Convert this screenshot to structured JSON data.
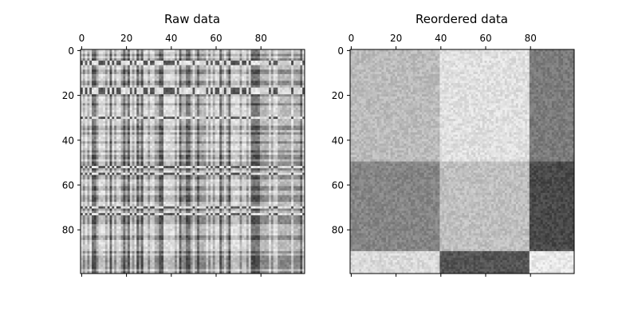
{
  "chart_data": [
    {
      "type": "heatmap",
      "title": "Raw data",
      "rows": 100,
      "cols": 100,
      "xticks": [
        0,
        20,
        40,
        60,
        80
      ],
      "yticks": [
        0,
        20,
        40,
        60,
        80
      ],
      "xaxis_position": "top",
      "colormap": "greys",
      "grid": false,
      "description_of_values": "bicluster matrix with rows and columns shuffled"
    },
    {
      "type": "heatmap",
      "title": "Reordered data",
      "rows": 100,
      "cols": 100,
      "xticks": [
        0,
        20,
        40,
        60,
        80
      ],
      "yticks": [
        0,
        20,
        40,
        60,
        80
      ],
      "xaxis_position": "top",
      "colormap": "greys",
      "grid": false,
      "row_blocks": [
        [
          0,
          50
        ],
        [
          50,
          90
        ],
        [
          90,
          100
        ]
      ],
      "col_blocks": [
        [
          0,
          40
        ],
        [
          40,
          80
        ],
        [
          80,
          100
        ]
      ],
      "block_values": [
        [
          0.27,
          0.1,
          0.57
        ],
        [
          0.52,
          0.25,
          0.8
        ],
        [
          0.13,
          0.75,
          0.06
        ]
      ]
    }
  ]
}
